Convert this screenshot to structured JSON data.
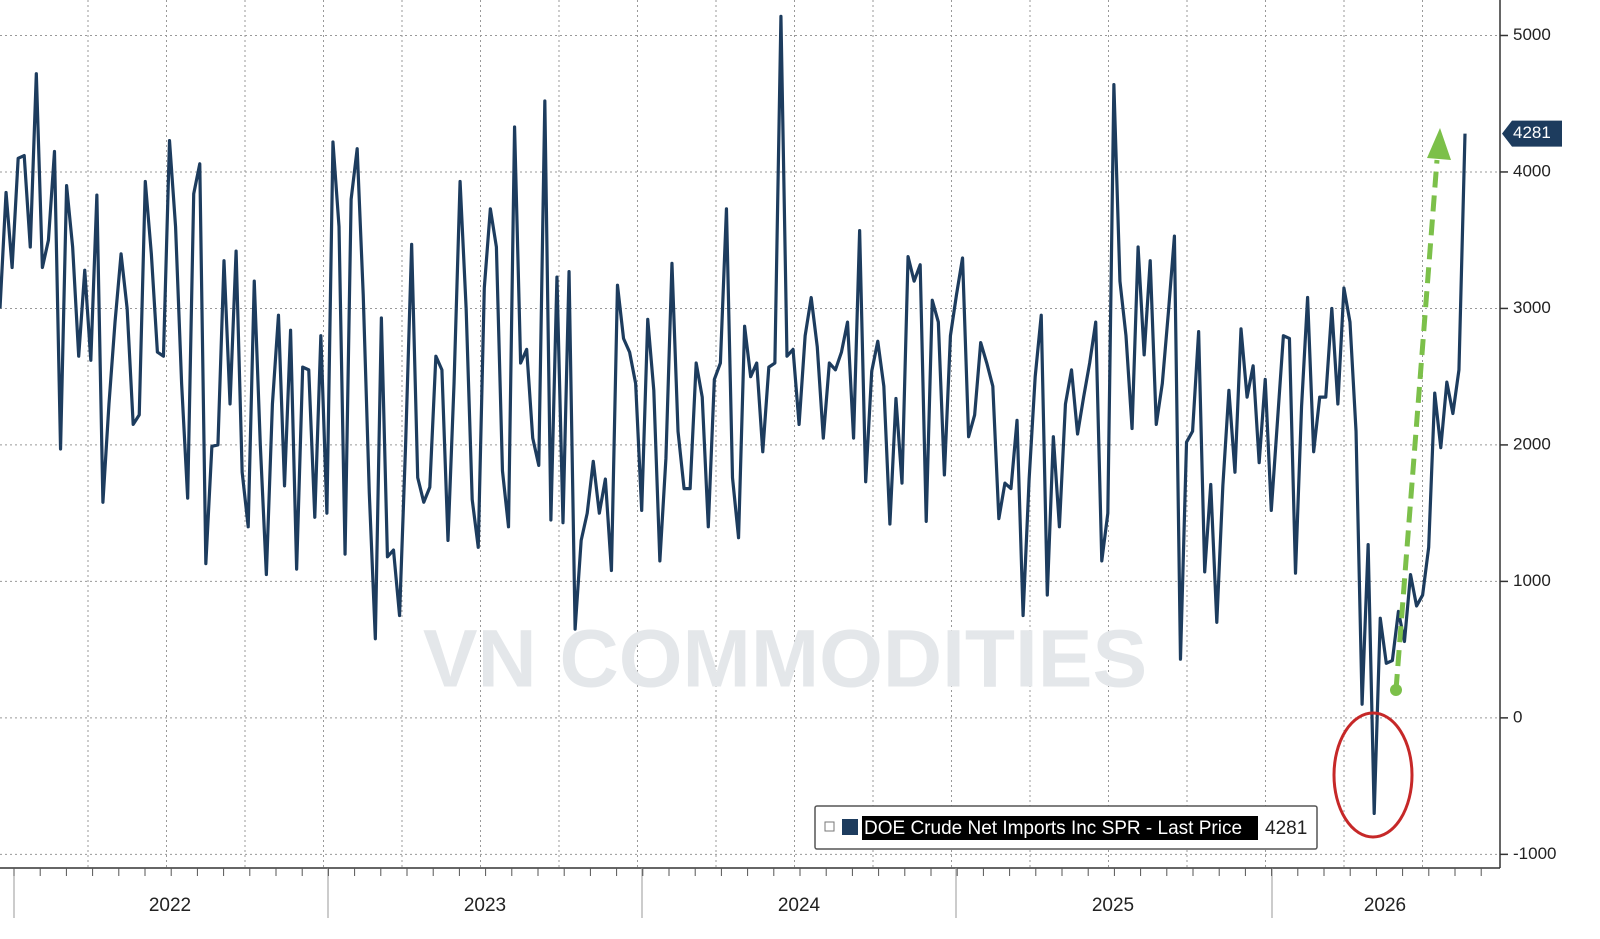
{
  "chart_data": {
    "type": "line",
    "watermark": "VN COMMODITIES",
    "series": [
      {
        "name": "DOE Crude Net Imports Inc SPR - Last Price",
        "color": "#1d3c5e",
        "values": [
          3000,
          3850,
          3300,
          4100,
          4120,
          3450,
          4720,
          3300,
          3500,
          4150,
          1970,
          3900,
          3450,
          2650,
          3280,
          2620,
          3830,
          1580,
          2300,
          2900,
          3400,
          3000,
          2150,
          2220,
          3930,
          3400,
          2680,
          2650,
          4230,
          3600,
          2450,
          1610,
          3840,
          4060,
          1130,
          1990,
          2000,
          3350,
          2300,
          3420,
          1800,
          1400,
          3200,
          2000,
          1050,
          2300,
          2950,
          1700,
          2840,
          1090,
          2570,
          2550,
          1470,
          2800,
          1500,
          4220,
          3600,
          1200,
          3800,
          4170,
          3100,
          1650,
          580,
          2930,
          1180,
          1230,
          750,
          2000,
          3470,
          1760,
          1580,
          1690,
          2650,
          2550,
          1300,
          2450,
          3930,
          3000,
          1600,
          1250,
          3150,
          3730,
          3450,
          1810,
          1400,
          4330,
          2600,
          2700,
          2050,
          1850,
          4520,
          1450,
          3230,
          1430,
          3270,
          650,
          1300,
          1500,
          1880,
          1500,
          1750,
          1080,
          3170,
          2780,
          2680,
          2450,
          1520,
          2920,
          2400,
          1150,
          1900,
          3330,
          2100,
          1680,
          1680,
          2600,
          2350,
          1400,
          2480,
          2600,
          3730,
          1760,
          1320,
          2870,
          2500,
          2600,
          1950,
          2570,
          2600,
          5140,
          2650,
          2700,
          2150,
          2800,
          3080,
          2720,
          2050,
          2600,
          2550,
          2680,
          2900,
          2050,
          3570,
          1730,
          2540,
          2760,
          2430,
          1420,
          2340,
          1720,
          3380,
          3200,
          3320,
          1440,
          3060,
          2900,
          1780,
          2800,
          3100,
          3370,
          2060,
          2220,
          2750,
          2600,
          2430,
          1460,
          1720,
          1680,
          2180,
          750,
          1750,
          2500,
          2950,
          900,
          2060,
          1400,
          2300,
          2550,
          2080,
          2350,
          2600,
          2900,
          1150,
          1500,
          4640,
          3200,
          2800,
          2120,
          3450,
          2660,
          3350,
          2150,
          2450,
          2970,
          3530,
          430,
          2020,
          2100,
          2830,
          1070,
          1710,
          700,
          1700,
          2400,
          1800,
          2850,
          2350,
          2580,
          1870,
          2480,
          1520,
          2160,
          2800,
          2780,
          1060,
          2280,
          3080,
          1950,
          2350,
          2350,
          3000,
          2300,
          3150,
          2900,
          2100,
          100,
          1270,
          -700,
          730,
          400,
          420,
          780,
          560,
          1050,
          820,
          900,
          1250,
          2380,
          1980,
          2460,
          2230,
          2550,
          4281
        ]
      }
    ],
    "x_labels": [
      "2022",
      "2023",
      "2024",
      "2025",
      "2026"
    ],
    "ylim": [
      -1100,
      5260
    ],
    "yticks": [
      -1000,
      0,
      1000,
      2000,
      3000,
      4000,
      5000
    ],
    "grid": true
  }
}
